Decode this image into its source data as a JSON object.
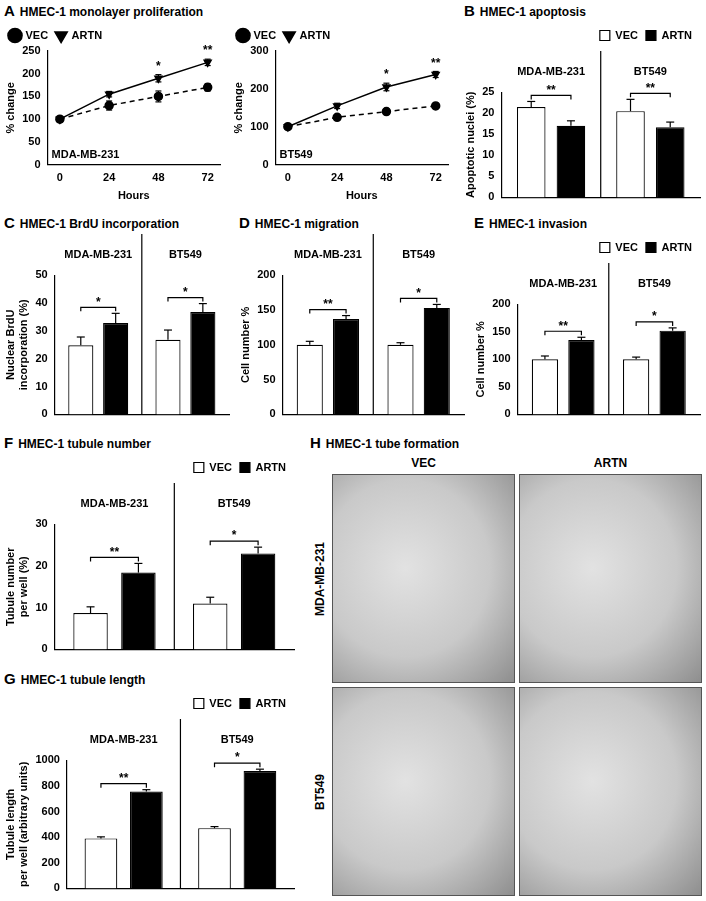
{
  "chart_data": [
    {
      "panel": "A",
      "title": "HMEC-1 monolayer proliferation",
      "type": "line",
      "annotation": "MDA-MB-231",
      "x_label": "Hours",
      "y_label": "% change",
      "x": [
        0,
        24,
        48,
        72
      ],
      "xlim": [
        -6,
        78
      ],
      "xticks": [
        0,
        24,
        48,
        72
      ],
      "ylim": [
        0,
        250
      ],
      "yticks": [
        0,
        50,
        100,
        150,
        200,
        250
      ],
      "grid": false,
      "legend": "upper left",
      "series": [
        {
          "name": "VEC",
          "color": "#000000",
          "marker": "circle",
          "line_style": "dashed",
          "values": [
            100,
            130,
            150,
            170
          ],
          "errors": [
            6,
            10,
            12,
            8
          ]
        },
        {
          "name": "ARTN",
          "color": "#000000",
          "marker": "triangle",
          "line_style": "solid",
          "values": [
            100,
            155,
            190,
            225
          ],
          "errors": [
            5,
            6,
            8,
            7
          ]
        }
      ],
      "significance": [
        null,
        null,
        "*",
        "**"
      ]
    },
    {
      "type": "line",
      "annotation": "BT549",
      "x_label": "Hours",
      "y_label": "% change",
      "x": [
        0,
        24,
        48,
        72
      ],
      "xlim": [
        -6,
        78
      ],
      "xticks": [
        0,
        24,
        48,
        72
      ],
      "ylim": [
        0,
        300
      ],
      "yticks": [
        0,
        100,
        200,
        300
      ],
      "grid": false,
      "legend": "upper left",
      "series": [
        {
          "name": "VEC",
          "color": "#000000",
          "marker": "circle",
          "line_style": "dashed",
          "values": [
            100,
            125,
            140,
            155
          ],
          "errors": [
            5,
            5,
            6,
            6
          ]
        },
        {
          "name": "ARTN",
          "color": "#000000",
          "marker": "triangle",
          "line_style": "solid",
          "values": [
            100,
            155,
            205,
            238
          ],
          "errors": [
            5,
            7,
            10,
            8
          ]
        }
      ],
      "significance": [
        null,
        null,
        "*",
        "**"
      ]
    },
    {
      "panel": "B",
      "title": "HMEC-1 apoptosis",
      "type": "bar",
      "categories": [
        "MDA-MB-231",
        "BT549"
      ],
      "y_label": "Apoptotic nuclei (%)",
      "ylim": [
        0,
        25
      ],
      "yticks": [
        0,
        5,
        10,
        15,
        20,
        25
      ],
      "grid": false,
      "legend": "upper right",
      "series": [
        {
          "name": "VEC",
          "color": "#ffffff",
          "values": [
            21.5,
            20.5
          ],
          "errors": [
            1.3,
            2.8
          ]
        },
        {
          "name": "ARTN",
          "color": "#000000",
          "values": [
            17,
            16.7
          ],
          "errors": [
            1.2,
            1.2
          ]
        }
      ],
      "significance": [
        "**",
        "**"
      ]
    },
    {
      "panel": "C",
      "title": "HMEC-1 BrdU incorporation",
      "type": "bar",
      "categories": [
        "MDA-MB-231",
        "BT549"
      ],
      "y_label": [
        "Nuclear BrdU",
        "incorporation (%)"
      ],
      "ylim": [
        0,
        50
      ],
      "yticks": [
        0,
        10,
        20,
        30,
        40,
        50
      ],
      "grid": false,
      "series": [
        {
          "color": "#ffffff",
          "values": [
            24.8,
            26.8
          ],
          "errors": [
            3,
            3.5
          ]
        },
        {
          "color": "#000000",
          "values": [
            32.8,
            36.8
          ],
          "errors": [
            3.5,
            3
          ]
        }
      ],
      "significance": [
        "*",
        "*"
      ]
    },
    {
      "panel": "D",
      "title": "HMEC-1 migration",
      "type": "bar",
      "categories": [
        "MDA-MB-231",
        "BT549"
      ],
      "y_label": "Cell number %",
      "ylim": [
        0,
        200
      ],
      "yticks": [
        0,
        50,
        100,
        150,
        200
      ],
      "grid": false,
      "series": [
        {
          "color": "#ffffff",
          "values": [
            100,
            100
          ],
          "errors": [
            5,
            3
          ]
        },
        {
          "color": "#000000",
          "values": [
            137,
            153
          ],
          "errors": [
            5,
            5
          ]
        }
      ],
      "significance": [
        "**",
        "*"
      ]
    },
    {
      "panel": "E",
      "title": "HMEC-1 invasion",
      "type": "bar",
      "categories": [
        "MDA-MB-231",
        "BT549"
      ],
      "y_label": "Cell number %",
      "ylim": [
        0,
        200
      ],
      "yticks": [
        0,
        50,
        100,
        150,
        200
      ],
      "grid": false,
      "legend": "upper right",
      "series": [
        {
          "name": "VEC",
          "color": "#ffffff",
          "values": [
            100,
            100
          ],
          "errors": [
            6,
            4
          ]
        },
        {
          "name": "ARTN",
          "color": "#000000",
          "values": [
            135,
            152
          ],
          "errors": [
            5,
            5
          ]
        }
      ],
      "significance": [
        "**",
        "*"
      ]
    },
    {
      "panel": "F",
      "title": "HMEC-1 tubule number",
      "type": "bar",
      "categories": [
        "MDA-MB-231",
        "BT549"
      ],
      "y_label": [
        "Tubule number",
        "per well (%)"
      ],
      "ylim": [
        0,
        30
      ],
      "yticks": [
        0,
        10,
        20,
        30
      ],
      "grid": false,
      "legend": "upper right",
      "series": [
        {
          "name": "VEC",
          "color": "#ffffff",
          "values": [
            8.7,
            11
          ],
          "errors": [
            1.5,
            1.5
          ]
        },
        {
          "name": "ARTN",
          "color": "#000000",
          "values": [
            18.4,
            23
          ],
          "errors": [
            2.2,
            1.5
          ]
        }
      ],
      "significance": [
        "**",
        "*"
      ]
    },
    {
      "panel": "G",
      "title": "HMEC-1 tubule length",
      "type": "bar",
      "categories": [
        "MDA-MB-231",
        "BT549"
      ],
      "y_label": [
        "Tubule length",
        "per well (arbitrary units)"
      ],
      "ylim": [
        0,
        1000
      ],
      "yticks": [
        0,
        200,
        400,
        600,
        800,
        1000
      ],
      "grid": false,
      "legend": "upper right",
      "series": [
        {
          "name": "VEC",
          "color": "#ffffff",
          "values": [
            390,
            470
          ],
          "errors": [
            12,
            12
          ]
        },
        {
          "name": "ARTN",
          "color": "#000000",
          "values": [
            755,
            915
          ],
          "errors": [
            15,
            15
          ]
        }
      ],
      "significance": [
        "**",
        "*"
      ]
    }
  ],
  "image_panel": {
    "panel": "H",
    "title": "HMEC-1 tube formation",
    "columns": [
      "VEC",
      "ARTN"
    ],
    "rows": [
      "MDA-MB-231",
      "BT549"
    ]
  }
}
